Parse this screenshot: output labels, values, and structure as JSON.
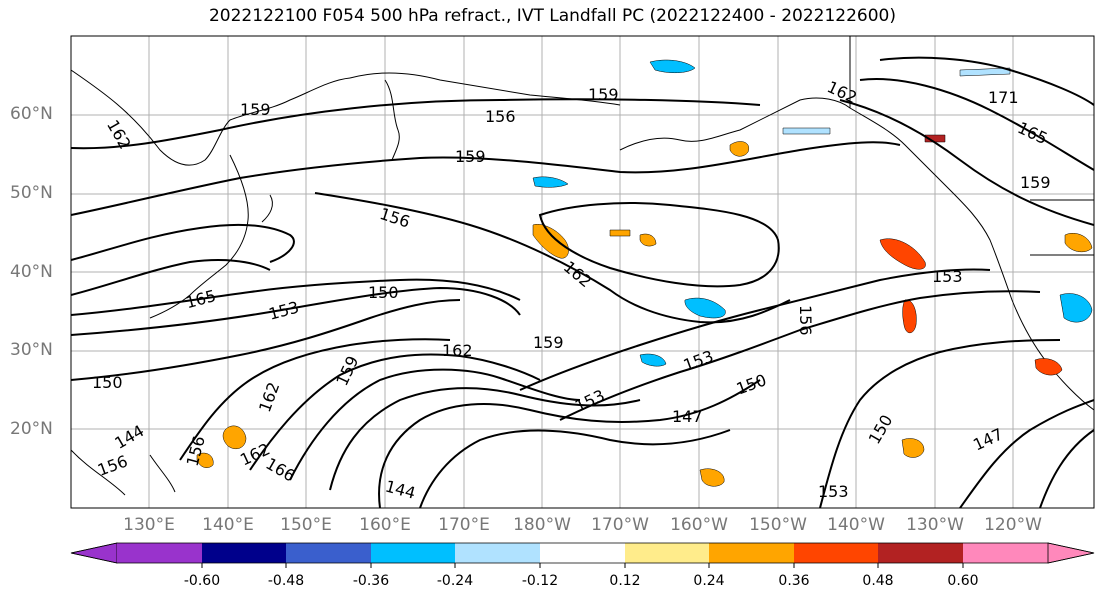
{
  "title": "2022122100 F054 500 hPa refract., IVT Landfall PC (2022122400 - 2022122600)",
  "lat_labels": [
    "60°N",
    "50°N",
    "40°N",
    "30°N",
    "20°N"
  ],
  "lon_labels": [
    "130°E",
    "140°E",
    "150°E",
    "160°E",
    "170°E",
    "180°W",
    "170°W",
    "160°W",
    "150°W",
    "140°W",
    "130°W",
    "120°W"
  ],
  "contour_labels": [
    "159",
    "162",
    "156",
    "159",
    "159",
    "162",
    "171",
    "165",
    "159",
    "156",
    "162",
    "153",
    "150",
    "165",
    "153",
    "162",
    "159",
    "156",
    "153",
    "150",
    "147",
    "150",
    "147",
    "153",
    "150",
    "159",
    "162",
    "162",
    "156",
    "166",
    "144",
    "156",
    "144",
    "153"
  ],
  "colorbar": {
    "ticks": [
      "-0.60",
      "-0.48",
      "-0.36",
      "-0.24",
      "-0.12",
      "0.12",
      "0.24",
      "0.36",
      "0.48",
      "0.60"
    ],
    "colors": [
      "#9933cc",
      "#00008b",
      "#3a5fcd",
      "#00bfff",
      "#b0e2ff",
      "#ffffff",
      "#ffec8b",
      "#ffa500",
      "#ff4500",
      "#b22222",
      "#ff88bb"
    ]
  },
  "colors": {
    "land": "#000000",
    "grid": "#b0b0b0",
    "contour": "#000000",
    "frame": "#000000"
  }
}
